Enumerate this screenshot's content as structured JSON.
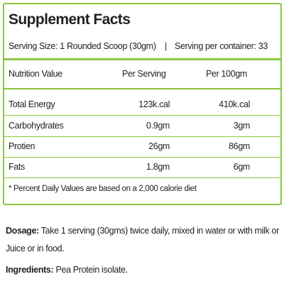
{
  "header": {
    "title": "Supplement Facts",
    "serving_size": "Serving Size: 1 Rounded Scoop (30gm)",
    "separator": "|",
    "serving_per_container": "Serving per container: 33"
  },
  "table": {
    "columns": [
      "Nutrition Value",
      "Per Serving",
      "Per 100gm"
    ],
    "rows": [
      [
        "Total Energy",
        "123k.cal",
        "410k.cal"
      ],
      [
        "Carbohydrates",
        "0.9gm",
        "3gm"
      ],
      [
        "Protien",
        "26gm",
        "86gm"
      ],
      [
        "Fats",
        "1.8gm",
        "6gm"
      ]
    ]
  },
  "footnote": "* Percent Daily Values are based on a 2,000 calorie diet",
  "dosage": {
    "label": "Dosage:",
    "text": "Take 1 serving (30gms) twice daily, mixed in water or with milk or Juice or in food."
  },
  "ingredients": {
    "label": "Ingredients:",
    "text": "Pea Protein isolate."
  }
}
